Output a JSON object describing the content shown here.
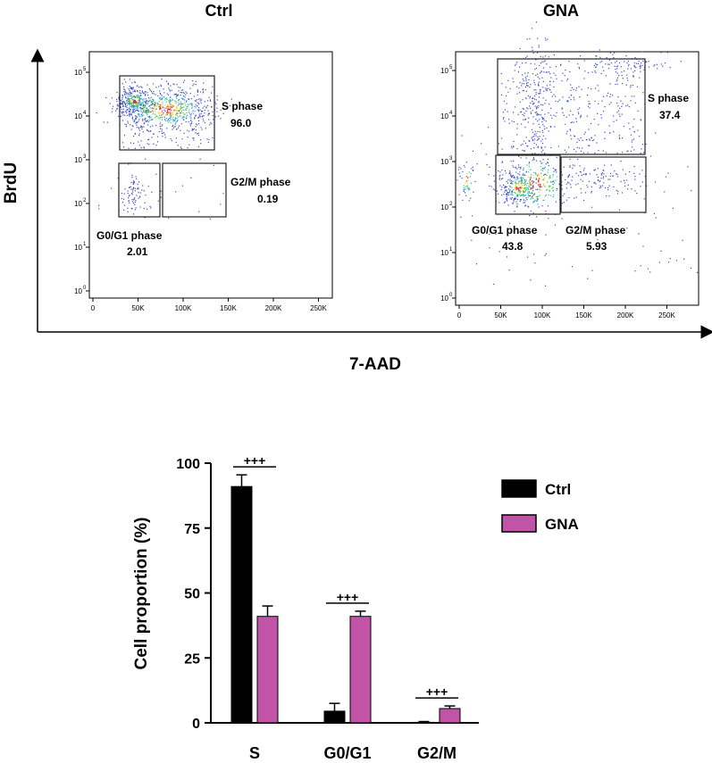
{
  "flow": {
    "axis_x_label": "7-AAD",
    "axis_y_label": "BrdU",
    "x_tick_labels": [
      "0",
      "50K",
      "100K",
      "150K",
      "200K",
      "250K"
    ],
    "y_tick_bases": [
      "10",
      "10",
      "10",
      "10",
      "10",
      "10"
    ],
    "y_tick_exps": [
      "0",
      "1",
      "2",
      "3",
      "4",
      "5"
    ],
    "panels": [
      {
        "title": "Ctrl",
        "gates": [
          {
            "name": "S phase",
            "value": "96.0"
          },
          {
            "name": "G0/G1 phase",
            "value": "2.01"
          },
          {
            "name": "G2/M phase",
            "value": "0.19"
          }
        ]
      },
      {
        "title": "GNA",
        "gates": [
          {
            "name": "S phase",
            "value": "37.4"
          },
          {
            "name": "G0/G1 phase",
            "value": "43.8"
          },
          {
            "name": "G2/M phase",
            "value": "5.93"
          }
        ]
      }
    ]
  },
  "chart_data": {
    "type": "bar",
    "categories": [
      "S",
      "G0/G1",
      "G2/M"
    ],
    "series": [
      {
        "name": "Ctrl",
        "values": [
          91,
          4.5,
          0.2
        ],
        "errors": [
          4.5,
          3,
          0.3
        ]
      },
      {
        "name": "GNA",
        "values": [
          41,
          41,
          5.5
        ],
        "errors": [
          4,
          2,
          1
        ]
      }
    ],
    "annotations": [
      "+++",
      "+++",
      "+++"
    ],
    "ylabel": "Cell proportion (%)",
    "xlabel": "",
    "ylim": [
      0,
      100
    ],
    "yticks": [
      0,
      25,
      50,
      75,
      100
    ],
    "legend_position": "right",
    "colors": {
      "Ctrl": "#000000",
      "GNA": "#c154a6"
    }
  }
}
